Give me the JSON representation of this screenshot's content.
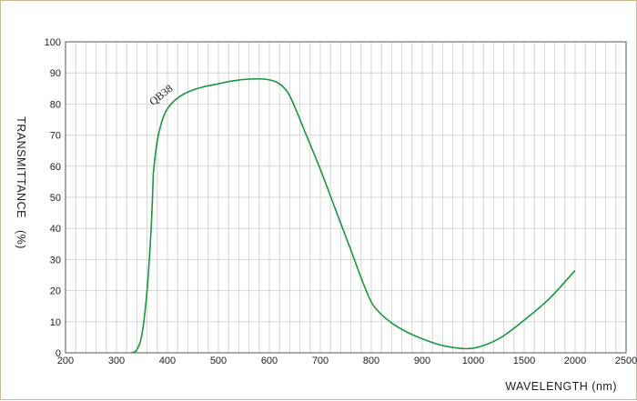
{
  "chart_data": {
    "type": "line",
    "title": "",
    "xlabel": "WAVELENGTH (nm)",
    "ylabel": "TRANSMITTANCE　(%)",
    "grid": true,
    "ylim": [
      0,
      100
    ],
    "y_ticks": [
      0,
      10,
      20,
      30,
      40,
      50,
      60,
      70,
      80,
      90,
      100
    ],
    "x_tick_labels": [
      "200",
      "300",
      "400",
      "500",
      "600",
      "700",
      "800",
      "900",
      "1000",
      "1500",
      "2000",
      "2500"
    ],
    "x_scale_note": "uniform 100 nm steps up to 1000 nm, then 500 nm steps per tick",
    "annotations": [
      {
        "text": "QB38",
        "x": 375,
        "y": 80
      }
    ],
    "series": [
      {
        "name": "QB38",
        "color": "#1a9641",
        "points": [
          [
            330,
            0
          ],
          [
            340,
            1
          ],
          [
            350,
            6
          ],
          [
            360,
            20
          ],
          [
            368,
            40
          ],
          [
            372,
            56
          ],
          [
            372.5,
            58
          ],
          [
            378,
            66
          ],
          [
            385,
            72
          ],
          [
            395,
            77
          ],
          [
            410,
            80.5
          ],
          [
            430,
            83
          ],
          [
            450,
            84.5
          ],
          [
            470,
            85.5
          ],
          [
            500,
            86.5
          ],
          [
            530,
            87.5
          ],
          [
            560,
            88
          ],
          [
            590,
            88
          ],
          [
            615,
            87
          ],
          [
            635,
            84
          ],
          [
            650,
            79
          ],
          [
            670,
            71
          ],
          [
            700,
            59
          ],
          [
            730,
            46
          ],
          [
            760,
            33
          ],
          [
            790,
            20
          ],
          [
            810,
            14
          ],
          [
            850,
            8.5
          ],
          [
            900,
            4.5
          ],
          [
            950,
            2
          ],
          [
            1000,
            1.5
          ],
          [
            1250,
            4.5
          ],
          [
            1500,
            10.5
          ],
          [
            1750,
            17.5
          ],
          [
            2000,
            26.5
          ]
        ]
      }
    ]
  }
}
